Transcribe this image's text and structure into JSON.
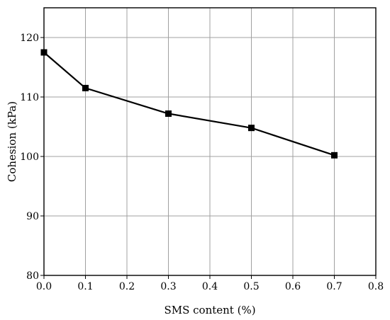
{
  "chart_data": {
    "type": "line",
    "title": "",
    "xlabel": "SMS content (%)",
    "ylabel": "Cohesion (kPa)",
    "xlim": [
      0.0,
      0.8
    ],
    "ylim": [
      80,
      125
    ],
    "x_ticks": [
      0.0,
      0.1,
      0.2,
      0.3,
      0.4,
      0.5,
      0.6,
      0.7,
      0.8
    ],
    "x_tick_labels": [
      "0.0",
      "0.1",
      "0.2",
      "0.3",
      "0.4",
      "0.5",
      "0.6",
      "0.7",
      "0.8"
    ],
    "y_ticks": [
      80,
      90,
      100,
      110,
      120
    ],
    "y_tick_labels": [
      "80",
      "90",
      "100",
      "110",
      "120"
    ],
    "grid": true,
    "legend": "none",
    "series": [
      {
        "x": [
          0.0,
          0.1,
          0.3,
          0.5,
          0.7
        ],
        "values": [
          117.5,
          111.5,
          107.2,
          104.8,
          100.2
        ],
        "color": "#000000",
        "marker": "square"
      }
    ]
  }
}
